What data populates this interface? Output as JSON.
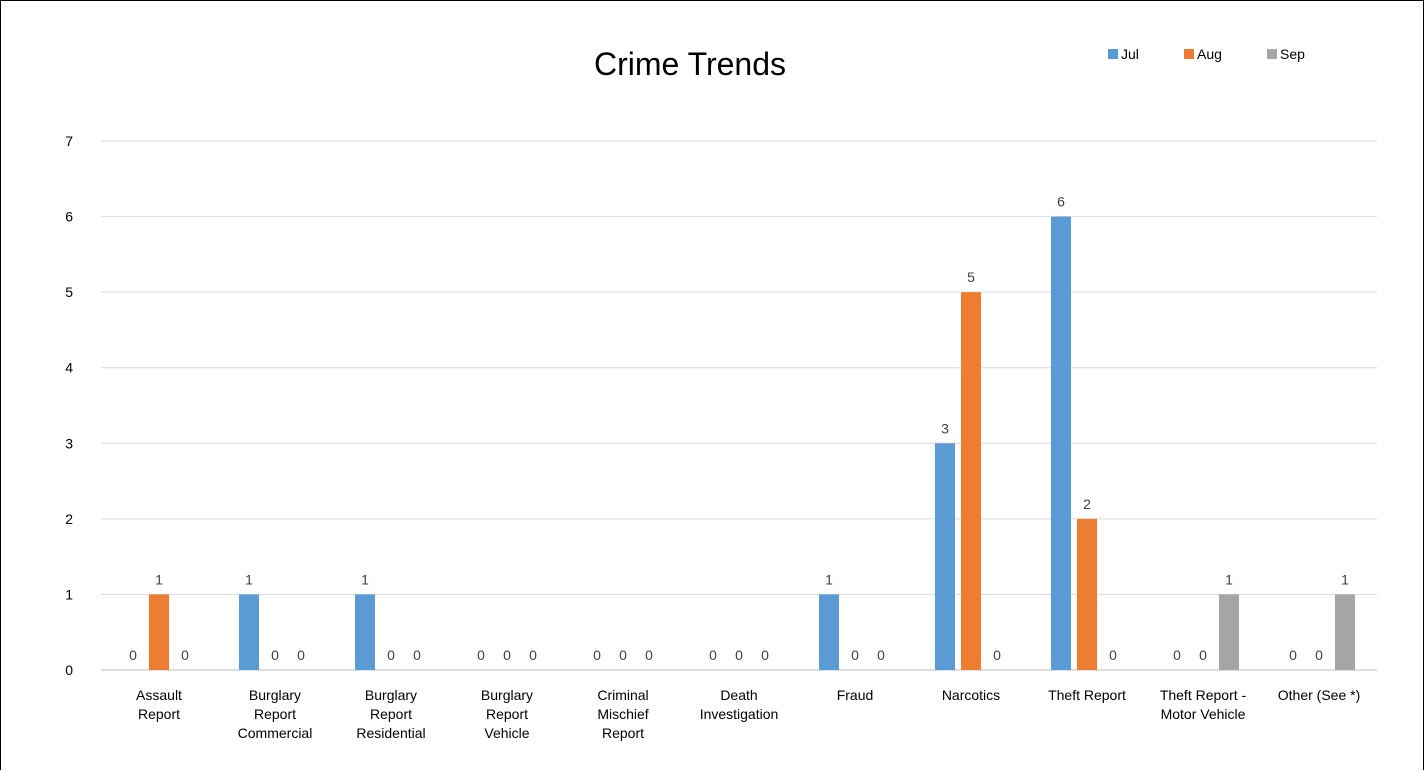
{
  "chart_data": {
    "type": "bar",
    "title": "Crime Trends",
    "categories": [
      [
        "Assault",
        "Report"
      ],
      [
        "Burglary",
        "Report",
        "Commercial"
      ],
      [
        "Burglary",
        "Report",
        "Residential"
      ],
      [
        "Burglary",
        "Report",
        "Vehicle"
      ],
      [
        "Criminal",
        "Mischief",
        "Report"
      ],
      [
        "Death",
        "Investigation"
      ],
      [
        "Fraud"
      ],
      [
        "Narcotics"
      ],
      [
        "Theft Report"
      ],
      [
        "Theft Report -",
        "Motor Vehicle"
      ],
      [
        "Other (See *)"
      ]
    ],
    "series": [
      {
        "name": "Jul",
        "color": "#5B9BD5",
        "values": [
          0,
          1,
          1,
          0,
          0,
          0,
          1,
          3,
          6,
          0,
          0
        ]
      },
      {
        "name": "Aug",
        "color": "#ED7D31",
        "values": [
          1,
          0,
          0,
          0,
          0,
          0,
          0,
          5,
          2,
          0,
          0
        ]
      },
      {
        "name": "Sep",
        "color": "#A5A5A5",
        "values": [
          0,
          0,
          0,
          0,
          0,
          0,
          0,
          0,
          0,
          1,
          1
        ]
      }
    ],
    "ylim": [
      0,
      7
    ],
    "yticks": [
      0,
      1,
      2,
      3,
      4,
      5,
      6,
      7
    ],
    "grid": true,
    "legend_position": "top-right",
    "data_labels": true
  }
}
